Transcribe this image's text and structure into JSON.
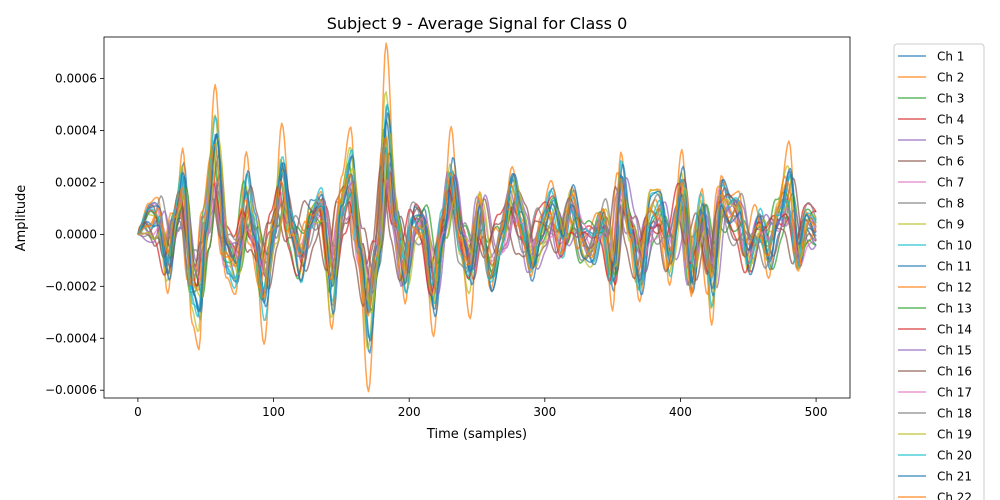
{
  "chart_data": {
    "type": "line",
    "title": "Subject 9 - Average Signal for Class 0",
    "xlabel": "Time (samples)",
    "ylabel": "Amplitude",
    "xlim": [
      -25,
      525
    ],
    "ylim": [
      -0.00063,
      0.00076
    ],
    "xticks": [
      0,
      100,
      200,
      300,
      400,
      500
    ],
    "xtick_labels": [
      "0",
      "100",
      "200",
      "300",
      "400",
      "500"
    ],
    "yticks": [
      -0.0006,
      -0.0004,
      -0.0002,
      0,
      0.0002,
      0.0004,
      0.0006
    ],
    "ytick_labels": [
      "−0.0006",
      "−0.0004",
      "−0.0002",
      "0.0000",
      "0.0002",
      "0.0004",
      "0.0006"
    ],
    "grid": false,
    "legend_placement": "outside-right",
    "common_envelope": {
      "x": [
        0,
        8,
        15,
        22,
        28,
        33,
        40,
        45,
        50,
        57,
        65,
        72,
        80,
        85,
        93,
        100,
        106,
        113,
        120,
        127,
        135,
        143,
        150,
        157,
        163,
        170,
        176,
        183,
        190,
        197,
        203,
        210,
        218,
        225,
        231,
        238,
        245,
        252,
        260,
        268,
        276,
        283,
        290,
        297,
        305,
        313,
        320,
        328,
        335,
        343,
        350,
        356,
        363,
        370,
        378,
        385,
        392,
        401,
        408,
        416,
        423,
        430,
        436,
        443,
        450,
        458,
        465,
        472,
        480,
        487,
        493,
        500
      ],
      "y": [
        0,
        8e-05,
        0.00012,
        -0.00015,
        8e-05,
        0.00026,
        -0.00028,
        -0.00035,
        5e-05,
        0.00048,
        -0.00012,
        -0.0002,
        0.00022,
        4e-05,
        -0.00032,
        2e-05,
        0.00032,
        3e-05,
        -0.00015,
        8e-05,
        0.00016,
        -0.00028,
        0.00016,
        0.00032,
        -8e-05,
        -0.00045,
        -0.00012,
        0.00055,
        8e-05,
        -0.00022,
        6e-05,
        6e-05,
        -0.00032,
        4e-05,
        0.00032,
        -2e-05,
        -0.00022,
        0.00014,
        -0.00018,
        -2e-05,
        0.00022,
        6e-05,
        -0.00014,
        2e-05,
        0.00014,
        -4e-05,
        0.00016,
        -4e-05,
        -8e-05,
        8e-05,
        -0.0002,
        0.00028,
        2e-05,
        -0.00022,
        0.00012,
        0.00014,
        -0.00014,
        0.00024,
        -0.00022,
        0.00012,
        -0.00026,
        0.0002,
        0.00012,
        0.00012,
        -0.00012,
        6e-05,
        -0.0001,
        8e-05,
        0.00026,
        -0.00012,
        6e-05,
        2e-05
      ]
    },
    "series": [
      {
        "name": "Ch 1",
        "color": "#1f77b4",
        "gain": 0.85,
        "shift": 0.8,
        "wig_amp": 5e-05,
        "wig_freq": 0.21,
        "wig_phase": 0.3
      },
      {
        "name": "Ch 2",
        "color": "#ff7f0e",
        "gain": 1.28,
        "shift": 0.0,
        "wig_amp": 3e-05,
        "wig_freq": 0.17,
        "wig_phase": 1.1
      },
      {
        "name": "Ch 3",
        "color": "#2ca02c",
        "gain": 0.6,
        "shift": -1.5,
        "wig_amp": 6e-05,
        "wig_freq": 0.24,
        "wig_phase": 2.0
      },
      {
        "name": "Ch 4",
        "color": "#d62728",
        "gain": 0.55,
        "shift": 2.0,
        "wig_amp": 6e-05,
        "wig_freq": 0.19,
        "wig_phase": 0.7
      },
      {
        "name": "Ch 5",
        "color": "#9467bd",
        "gain": 0.58,
        "shift": -2.5,
        "wig_amp": 5e-05,
        "wig_freq": 0.27,
        "wig_phase": 2.6
      },
      {
        "name": "Ch 6",
        "color": "#8c564b",
        "gain": 0.5,
        "shift": 3.0,
        "wig_amp": 6e-05,
        "wig_freq": 0.22,
        "wig_phase": 1.8
      },
      {
        "name": "Ch 7",
        "color": "#e377c2",
        "gain": 0.55,
        "shift": -1.0,
        "wig_amp": 5e-05,
        "wig_freq": 0.18,
        "wig_phase": 0.2
      },
      {
        "name": "Ch 8",
        "color": "#7f7f7f",
        "gain": 0.5,
        "shift": 1.5,
        "wig_amp": 7e-05,
        "wig_freq": 0.25,
        "wig_phase": 3.1
      },
      {
        "name": "Ch 9",
        "color": "#bcbd22",
        "gain": 0.95,
        "shift": -0.5,
        "wig_amp": 4e-05,
        "wig_freq": 0.2,
        "wig_phase": 1.4
      },
      {
        "name": "Ch 10",
        "color": "#17becf",
        "gain": 0.88,
        "shift": 0.5,
        "wig_amp": 4e-05,
        "wig_freq": 0.23,
        "wig_phase": 2.2
      },
      {
        "name": "Ch 11",
        "color": "#1f77b4",
        "gain": 0.9,
        "shift": 1.2,
        "wig_amp": 4e-05,
        "wig_freq": 0.16,
        "wig_phase": 0.9
      },
      {
        "name": "Ch 12",
        "color": "#ff7f0e",
        "gain": 0.7,
        "shift": -3.0,
        "wig_amp": 5e-05,
        "wig_freq": 0.26,
        "wig_phase": 2.8
      },
      {
        "name": "Ch 13",
        "color": "#2ca02c",
        "gain": 0.48,
        "shift": 2.5,
        "wig_amp": 6e-05,
        "wig_freq": 0.21,
        "wig_phase": 0.5
      },
      {
        "name": "Ch 14",
        "color": "#d62728",
        "gain": 0.45,
        "shift": -2.0,
        "wig_amp": 7e-05,
        "wig_freq": 0.19,
        "wig_phase": 1.6
      },
      {
        "name": "Ch 15",
        "color": "#9467bd",
        "gain": 0.52,
        "shift": 3.5,
        "wig_amp": 6e-05,
        "wig_freq": 0.24,
        "wig_phase": 2.4
      },
      {
        "name": "Ch 16",
        "color": "#8c564b",
        "gain": 0.42,
        "shift": -3.5,
        "wig_amp": 7e-05,
        "wig_freq": 0.22,
        "wig_phase": 0.1
      },
      {
        "name": "Ch 17",
        "color": "#e377c2",
        "gain": 0.4,
        "shift": 1.0,
        "wig_amp": 5e-05,
        "wig_freq": 0.17,
        "wig_phase": 3.0
      },
      {
        "name": "Ch 18",
        "color": "#7f7f7f",
        "gain": 0.45,
        "shift": -1.2,
        "wig_amp": 7e-05,
        "wig_freq": 0.28,
        "wig_phase": 1.2
      },
      {
        "name": "Ch 19",
        "color": "#bcbd22",
        "gain": 0.62,
        "shift": 2.2,
        "wig_amp": 5e-05,
        "wig_freq": 0.2,
        "wig_phase": 2.1
      },
      {
        "name": "Ch 20",
        "color": "#17becf",
        "gain": 0.72,
        "shift": -0.8,
        "wig_amp": 5e-05,
        "wig_freq": 0.23,
        "wig_phase": 0.6
      },
      {
        "name": "Ch 21",
        "color": "#1f77b4",
        "gain": 0.8,
        "shift": 0.3,
        "wig_amp": 4e-05,
        "wig_freq": 0.18,
        "wig_phase": 1.9
      },
      {
        "name": "Ch 22",
        "color": "#ff7f0e",
        "gain": 0.78,
        "shift": -0.3,
        "wig_amp": 4e-05,
        "wig_freq": 0.25,
        "wig_phase": 2.7
      }
    ]
  }
}
